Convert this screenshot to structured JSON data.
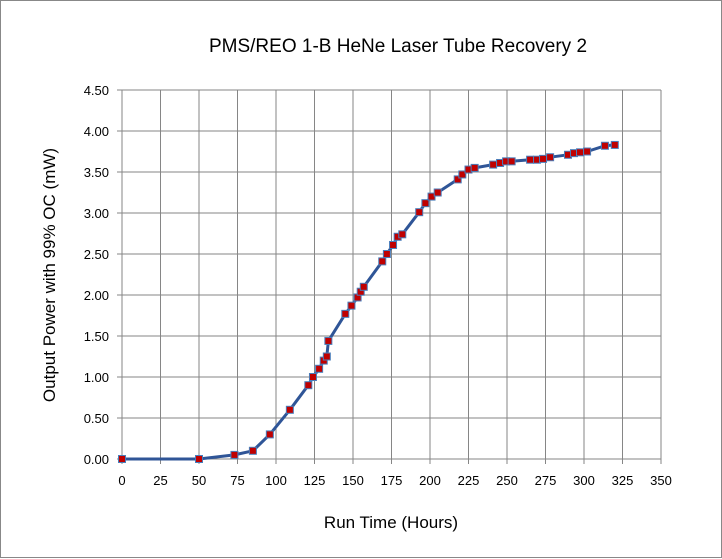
{
  "chart_data": {
    "type": "line",
    "title": "PMS/REO 1-B HeNe Laser Tube Recovery 2",
    "xlabel": "Run Time (Hours)",
    "ylabel": "Output Power with 99% OC (mW)",
    "xlim": [
      0,
      350
    ],
    "ylim": [
      0,
      4.5
    ],
    "xticks": [
      "0",
      "25",
      "50",
      "75",
      "100",
      "125",
      "150",
      "175",
      "200",
      "225",
      "250",
      "275",
      "300",
      "325",
      "350"
    ],
    "yticks": [
      "0.00",
      "0.50",
      "1.00",
      "1.50",
      "2.00",
      "2.50",
      "3.00",
      "3.50",
      "4.00",
      "4.50"
    ],
    "grid": true,
    "legend": "none",
    "line_color": "#2f5597",
    "marker_color": "#c00000",
    "series": [
      {
        "name": "Output Power",
        "x": [
          0,
          50,
          73,
          85,
          96,
          109,
          121,
          124,
          128,
          131,
          133,
          134,
          145,
          149,
          153,
          155,
          157,
          169,
          172,
          176,
          179,
          182,
          193,
          197,
          201,
          205,
          218,
          221,
          225,
          229,
          241,
          245.5,
          249.4,
          253,
          265,
          269.5,
          273.4,
          278,
          289.6,
          293.5,
          297.4,
          302,
          313.6,
          320
        ],
        "y": [
          0,
          0,
          0.05,
          0.1,
          0.3,
          0.6,
          0.9,
          1.0,
          1.1,
          1.2,
          1.25,
          1.44,
          1.77,
          1.87,
          1.97,
          2.04,
          2.1,
          2.41,
          2.5,
          2.61,
          2.71,
          2.74,
          3.01,
          3.12,
          3.2,
          3.25,
          3.41,
          3.47,
          3.53,
          3.55,
          3.59,
          3.61,
          3.63,
          3.63,
          3.65,
          3.65,
          3.66,
          3.68,
          3.71,
          3.73,
          3.74,
          3.75,
          3.82,
          3.83
        ]
      }
    ]
  }
}
